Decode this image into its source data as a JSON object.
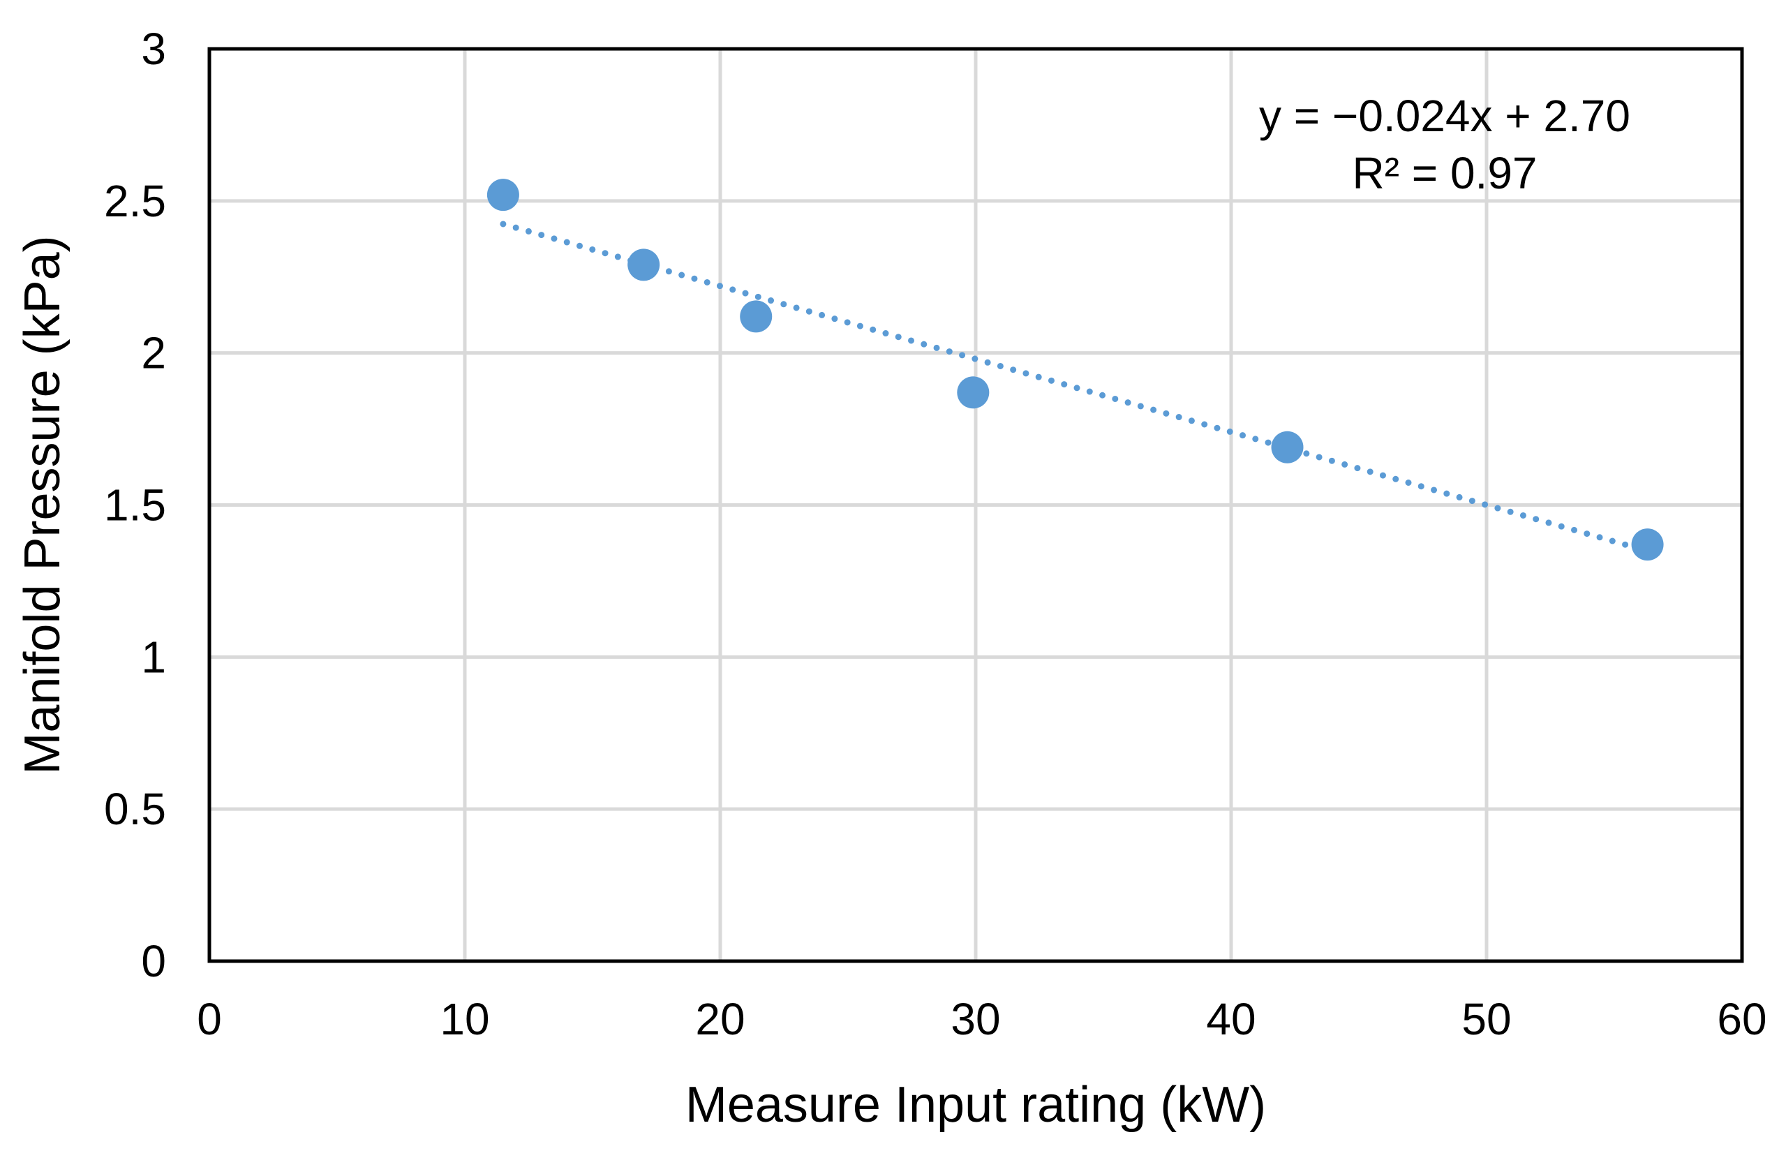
{
  "chart_data": {
    "type": "scatter",
    "title": "",
    "xlabel": "Measure Input rating (kW)",
    "ylabel": "Manifold Pressure (kPa)",
    "xlim": [
      0,
      60
    ],
    "ylim": [
      0,
      3
    ],
    "xticks": [
      0,
      10,
      20,
      30,
      40,
      50,
      60
    ],
    "yticks": [
      0,
      0.5,
      1,
      1.5,
      2,
      2.5,
      3
    ],
    "xtick_labels": [
      "0",
      "10",
      "20",
      "30",
      "40",
      "50",
      "60"
    ],
    "ytick_labels": [
      "0",
      "0.5",
      "1",
      "1.5",
      "2",
      "2.5",
      "3"
    ],
    "grid": true,
    "series": [
      {
        "name": "Manifold Pressure",
        "color": "#5B9BD5",
        "points": [
          {
            "x": 11.5,
            "y": 2.52
          },
          {
            "x": 17.0,
            "y": 2.29
          },
          {
            "x": 21.4,
            "y": 2.12
          },
          {
            "x": 29.9,
            "y": 1.87
          },
          {
            "x": 42.2,
            "y": 1.69
          },
          {
            "x": 56.3,
            "y": 1.37
          }
        ]
      }
    ],
    "trendline": {
      "type": "linear",
      "style": "dotted",
      "color": "#5B9BD5",
      "slope": -0.024,
      "intercept": 2.7,
      "x_start": 11.5,
      "x_end": 56.3,
      "equation_label": "y = −0.024x + 2.70",
      "r2_label": "R² = 0.97"
    }
  }
}
